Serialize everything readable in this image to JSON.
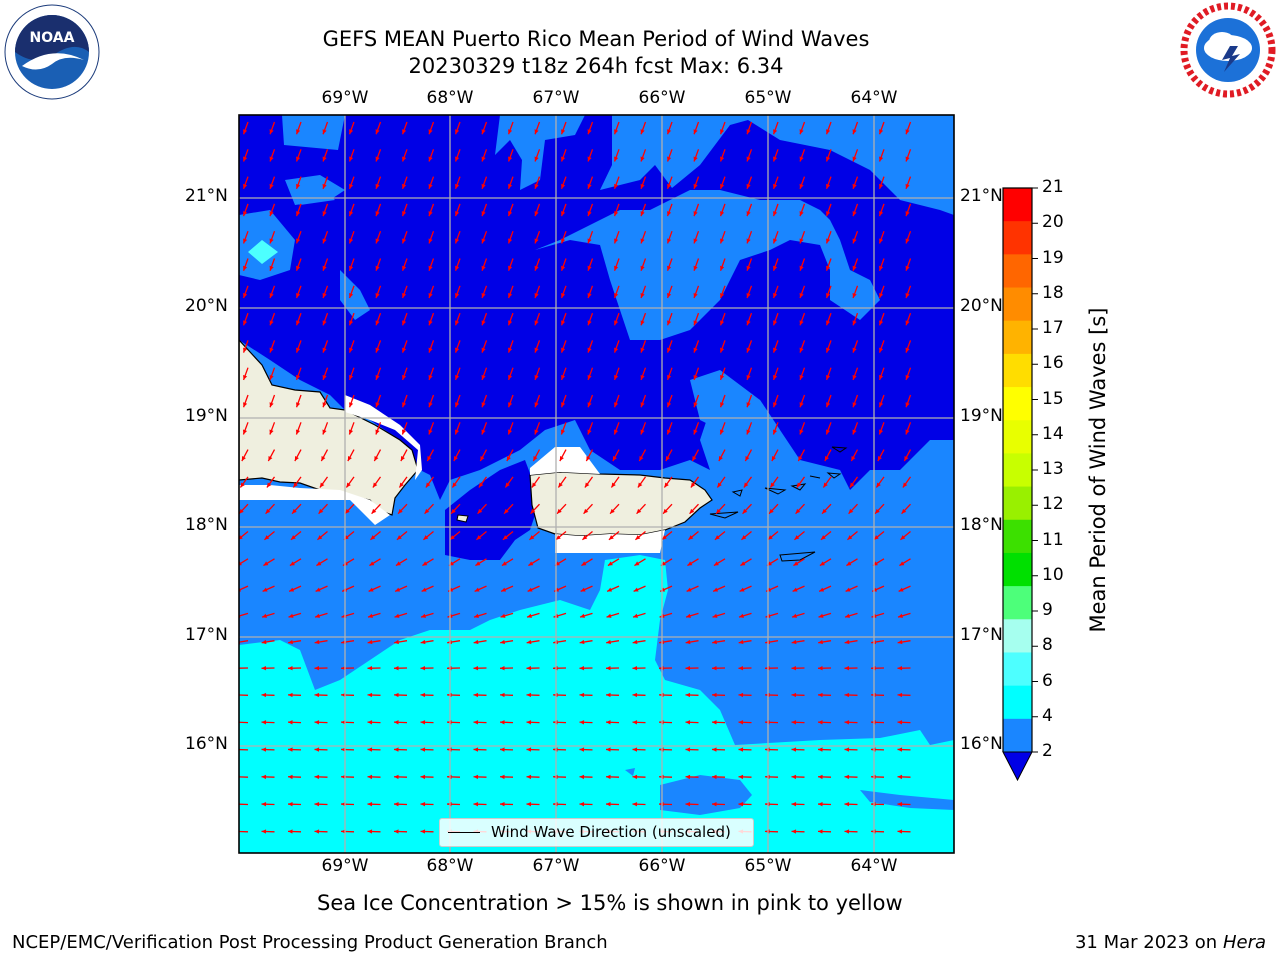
{
  "title_line1": "GEFS MEAN Puerto Rico Mean Period of Wind Waves",
  "title_line2": "20230329 t18z 264h fcst   Max: 6.34",
  "lon_labels": [
    "69°W",
    "68°W",
    "67°W",
    "66°W",
    "65°W",
    "64°W"
  ],
  "lat_labels": [
    "21°N",
    "20°N",
    "19°N",
    "18°N",
    "17°N",
    "16°N"
  ],
  "colorbar": {
    "title": "Mean Period of Wind Waves [s]",
    "ticks": [
      "21",
      "20",
      "19",
      "18",
      "17",
      "16",
      "15",
      "14",
      "13",
      "12",
      "11",
      "10",
      "9",
      "8",
      "6",
      "4",
      "2"
    ],
    "colors": [
      "#ff0000",
      "#ff3300",
      "#ff6600",
      "#ff8c00",
      "#ffb300",
      "#ffdd00",
      "#ffff00",
      "#e8ff00",
      "#c8ff00",
      "#99f000",
      "#3ce000",
      "#00e000",
      "#4dff7a",
      "#a6ffef",
      "#4dffff",
      "#00ffff",
      "#1a86ff"
    ],
    "under_color": "#0000e6"
  },
  "legend_label": "Wind Wave Direction (unscaled)",
  "caption": "Sea Ice Concentration > 15% is shown in pink to yellow",
  "footer_left": "NCEP/EMC/Verification Post Processing Product Generation Branch",
  "footer_date": "31 Mar 2023 on",
  "footer_host": "Hera",
  "colors": {
    "deep_blue": "#0000e6",
    "mid_blue": "#1a86ff",
    "cyan": "#00ffff",
    "land": "#efefdf",
    "arrow": "#ff0000"
  },
  "icons": [
    "noaa-logo",
    "nws-logo"
  ]
}
